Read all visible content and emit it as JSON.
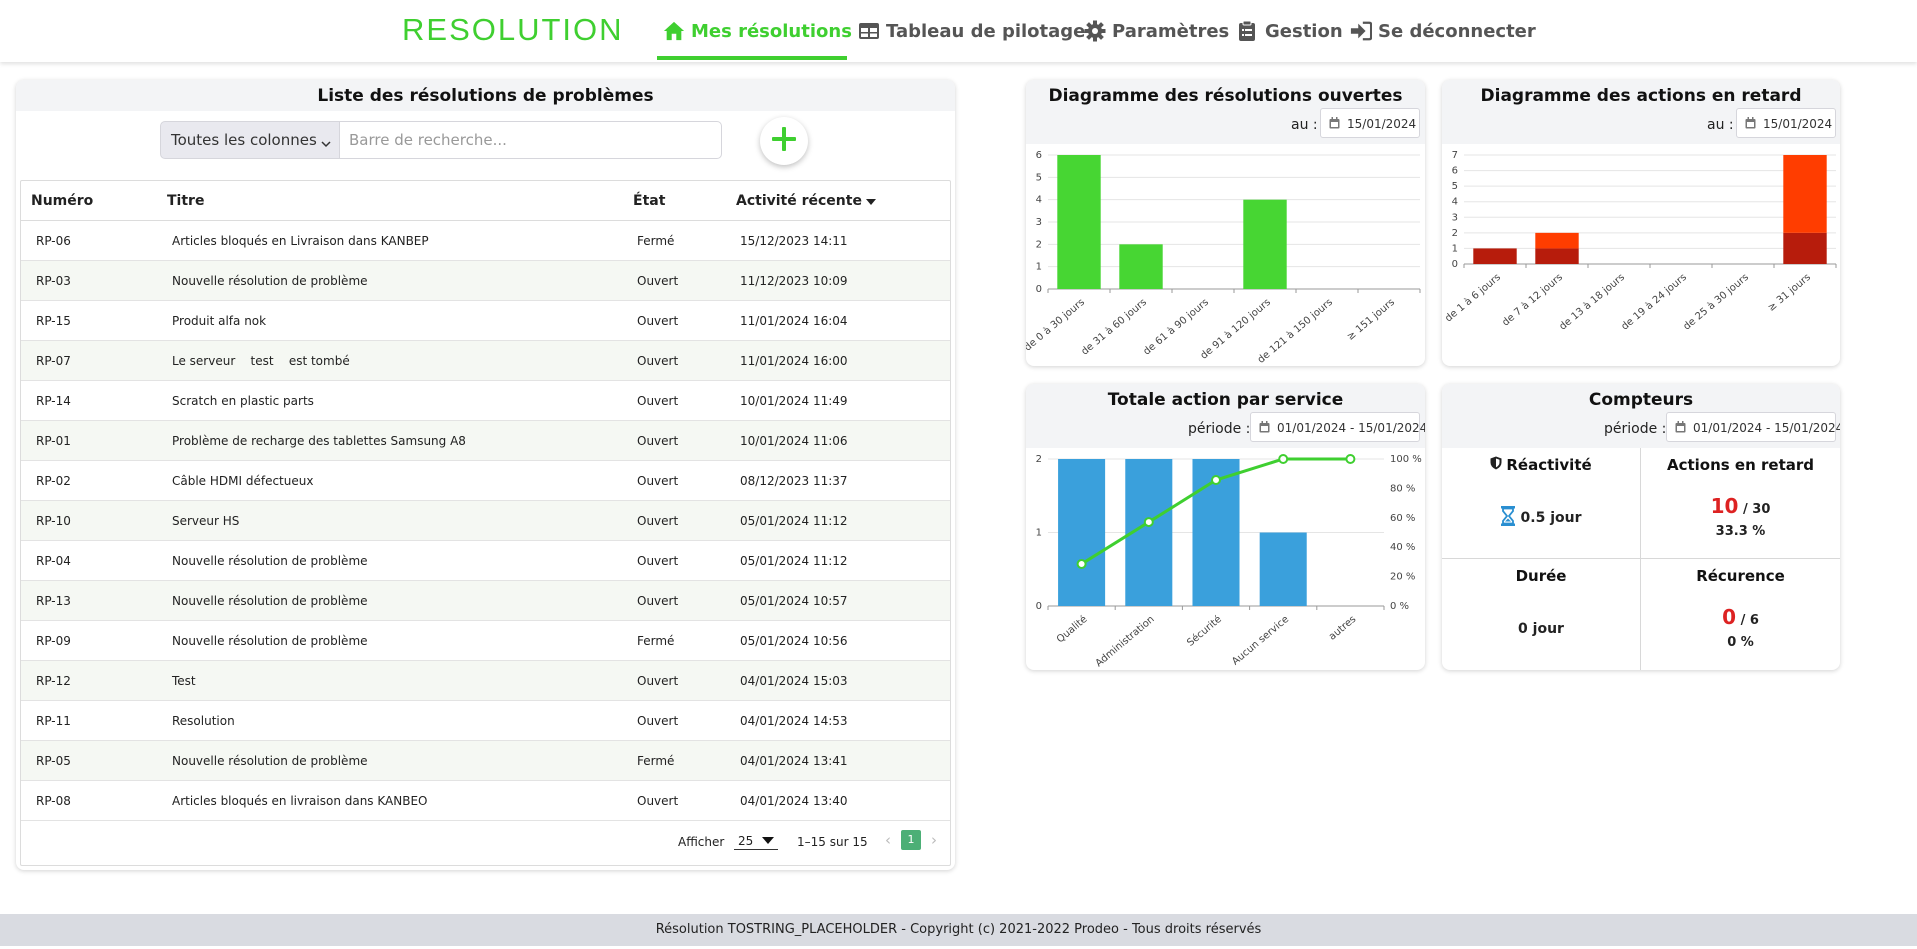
{
  "brand": {
    "logo": "RESOLUTION"
  },
  "nav": [
    {
      "label": "Mes résolutions",
      "icon": "home-icon",
      "active": true
    },
    {
      "label": "Tableau de pilotage",
      "icon": "table-icon",
      "active": false
    },
    {
      "label": "Paramètres",
      "icon": "gear-icon",
      "active": false
    },
    {
      "label": "Gestion",
      "icon": "clipboard-icon",
      "active": false
    },
    {
      "label": "Se déconnecter",
      "icon": "logout-icon",
      "active": false
    }
  ],
  "list": {
    "title": "Liste des résolutions de problèmes",
    "column_filter": "Toutes les colonnes",
    "search_placeholder": "Barre de recherche...",
    "headers": {
      "number": "Numéro",
      "title": "Titre",
      "state": "État",
      "activity": "Activité récente"
    },
    "rows": [
      {
        "number": "RP-06",
        "title": "Articles bloqués en Livraison dans KANBEP",
        "state": "Fermé",
        "activity": "15/12/2023 14:11"
      },
      {
        "number": "RP-03",
        "title": "Nouvelle résolution de problème",
        "state": "Ouvert",
        "activity": "11/12/2023 10:09"
      },
      {
        "number": "RP-15",
        "title": "Produit alfa nok",
        "state": "Ouvert",
        "activity": "11/01/2024 16:04"
      },
      {
        "number": "RP-07",
        "title": "Le serveur    test    est tombé",
        "state": "Ouvert",
        "activity": "11/01/2024 16:00"
      },
      {
        "number": "RP-14",
        "title": "Scratch en plastic parts",
        "state": "Ouvert",
        "activity": "10/01/2024 11:49"
      },
      {
        "number": "RP-01",
        "title": "Problème de recharge des tablettes Samsung A8",
        "state": "Ouvert",
        "activity": "10/01/2024 11:06"
      },
      {
        "number": "RP-02",
        "title": "Câble HDMI défectueux",
        "state": "Ouvert",
        "activity": "08/12/2023 11:37"
      },
      {
        "number": "RP-10",
        "title": "Serveur HS",
        "state": "Ouvert",
        "activity": "05/01/2024 11:12"
      },
      {
        "number": "RP-04",
        "title": "Nouvelle résolution de problème",
        "state": "Ouvert",
        "activity": "05/01/2024 11:12"
      },
      {
        "number": "RP-13",
        "title": "Nouvelle résolution de problème",
        "state": "Ouvert",
        "activity": "05/01/2024 10:57"
      },
      {
        "number": "RP-09",
        "title": "Nouvelle résolution de problème",
        "state": "Fermé",
        "activity": "05/01/2024 10:56"
      },
      {
        "number": "RP-12",
        "title": "Test",
        "state": "Ouvert",
        "activity": "04/01/2024 15:03"
      },
      {
        "number": "RP-11",
        "title": "Resolution",
        "state": "Ouvert",
        "activity": "04/01/2024 14:53"
      },
      {
        "number": "RP-05",
        "title": "Nouvelle résolution de problème",
        "state": "Fermé",
        "activity": "04/01/2024 13:41"
      },
      {
        "number": "RP-08",
        "title": "Articles bloqués en livraison dans KANBEO",
        "state": "Ouvert",
        "activity": "04/01/2024 13:40"
      }
    ],
    "pager": {
      "show_label": "Afficher",
      "page_size": "25",
      "range": "1–15 sur 15",
      "page": "1"
    }
  },
  "open_chart": {
    "title": "Diagramme des résolutions ouvertes",
    "date_label": "au :",
    "date": "15/01/2024"
  },
  "late_chart": {
    "title": "Diagramme des actions en retard",
    "date_label": "au :",
    "date": "15/01/2024"
  },
  "service_chart": {
    "title": "Totale action par service",
    "period_label": "période :",
    "period": "01/01/2024 - 15/01/2024"
  },
  "counters": {
    "title": "Compteurs",
    "period_label": "période :",
    "period": "01/01/2024 - 15/01/2024",
    "reactivity": {
      "label": "Réactivité",
      "value": "0.5 jour"
    },
    "late_actions": {
      "label": "Actions en retard",
      "count": "10",
      "total": "/ 30",
      "percent": "33.3 %"
    },
    "duration": {
      "label": "Durée",
      "value": "0 jour"
    },
    "recurrence": {
      "label": "Récurence",
      "count": "0",
      "total": "/ 6",
      "percent": "0 %"
    }
  },
  "footer": {
    "text": "Résolution TOSTRING_PLACEHOLDER - Copyright (c) 2021-2022 Prodeo - Tous droits réservés"
  },
  "colors": {
    "accent": "#3fcf30",
    "bar_green": "#47d633",
    "late_orange": "#ff3d00",
    "late_dark": "#b71c0c",
    "bar_blue": "#3aa0dc",
    "line_green": "#3fcf30"
  },
  "chart_data": [
    {
      "type": "bar",
      "title": "Diagramme des résolutions ouvertes",
      "categories": [
        "de 0 à 30 jours",
        "de 31 à 60 jours",
        "de 61 à 90 jours",
        "de 91 à 120 jours",
        "de 121 à 150 jours",
        "≥ 151 jours"
      ],
      "values": [
        6,
        2,
        0,
        4,
        0,
        0
      ],
      "ylim": [
        0,
        6
      ],
      "yticks": [
        0,
        1,
        2,
        3,
        4,
        5,
        6
      ]
    },
    {
      "type": "bar",
      "stacked": true,
      "title": "Diagramme des actions en retard",
      "categories": [
        "de 1 à 6 jours",
        "de 7 à 12 jours",
        "de 13 à 18 jours",
        "de 19 à 24 jours",
        "de 25 à 30 jours",
        "≥ 31 jours"
      ],
      "series": [
        {
          "name": "retard important",
          "values": [
            1,
            1,
            0,
            0,
            0,
            2
          ]
        },
        {
          "name": "retard",
          "values": [
            0,
            1,
            0,
            0,
            0,
            5
          ]
        }
      ],
      "ylim": [
        0,
        7
      ],
      "yticks": [
        0,
        1,
        2,
        3,
        4,
        5,
        6,
        7
      ]
    },
    {
      "type": "bar",
      "title": "Totale action par service",
      "categories": [
        "Qualité",
        "Administration",
        "Sécurité",
        "Aucun service",
        "autres"
      ],
      "values": [
        2,
        2,
        2,
        1,
        0
      ],
      "ylim": [
        0,
        2
      ],
      "yticks": [
        0,
        1,
        2
      ],
      "cumulative_percent": [
        28.6,
        57.1,
        85.7,
        100,
        100
      ],
      "y2ticks": [
        "0 %",
        "20 %",
        "40 %",
        "60 %",
        "80 %",
        "100 %"
      ]
    }
  ]
}
